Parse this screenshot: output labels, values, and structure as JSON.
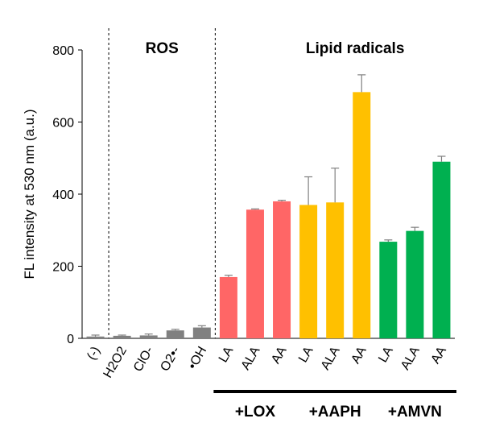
{
  "chart_data": {
    "type": "bar",
    "ylabel": "FL intensity at 530 nm (a.u.)",
    "ylim": [
      0,
      800
    ],
    "yticks": [
      0,
      200,
      400,
      600,
      800
    ],
    "grid": false,
    "categories": [
      "(-)",
      "H2O2",
      "ClO-",
      "O2•-",
      "•OH",
      "LA",
      "ALA",
      "AA",
      "LA",
      "ALA",
      "AA",
      "LA",
      "ALA",
      "AA"
    ],
    "values": [
      5,
      7,
      8,
      22,
      30,
      170,
      357,
      380,
      370,
      377,
      683,
      268,
      298,
      490
    ],
    "errors": [
      4,
      2,
      4,
      3,
      5,
      5,
      2,
      3,
      78,
      95,
      48,
      5,
      10,
      15
    ],
    "colors": [
      "#808080",
      "#808080",
      "#808080",
      "#808080",
      "#808080",
      "#FF6666",
      "#FF6666",
      "#FF6666",
      "#FFC000",
      "#FFC000",
      "#FFC000",
      "#00B050",
      "#00B050",
      "#00B050"
    ],
    "section_labels": [
      "ROS",
      "Lipid radicals"
    ],
    "groups": [
      {
        "label": "+LOX",
        "start": 5,
        "end": 7
      },
      {
        "label": "+AAPH",
        "start": 8,
        "end": 10
      },
      {
        "label": "+AMVN",
        "start": 11,
        "end": 13
      }
    ]
  }
}
